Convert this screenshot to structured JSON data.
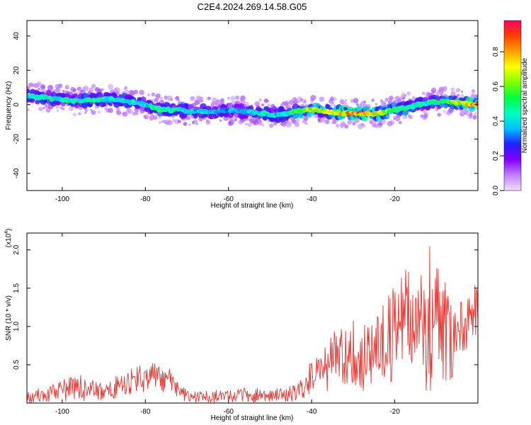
{
  "title": "C2E4.2024.269.14.58.G05",
  "colorbar": {
    "label": "Normalized spectral amplitude",
    "ticks": [
      "0.0",
      "0.2",
      "0.4",
      "0.6",
      "0.8"
    ],
    "tick_values": [
      0.0,
      0.2,
      0.4,
      0.6,
      0.8
    ],
    "range": [
      0.0,
      0.98
    ],
    "colors": [
      "#f0e0ff",
      "#c080ff",
      "#8000ff",
      "#2020ff",
      "#00c0ff",
      "#00ffc0",
      "#00ff40",
      "#80ff00",
      "#ffff00",
      "#ffa000",
      "#ff4000",
      "#ff0060"
    ]
  },
  "chart_data": [
    {
      "type": "heatmap",
      "xlabel": "Height of straight line (km)",
      "ylabel": "Frequency (Hz)",
      "xlim": [
        -108.5,
        0
      ],
      "ylim": [
        -50,
        49
      ],
      "xticks": [
        "-100",
        "-80",
        "-60",
        "-40",
        "-20"
      ],
      "xtick_values": [
        -100,
        -80,
        -60,
        -40,
        -20
      ],
      "yticks": [
        "40",
        "20",
        "0",
        "-20",
        "-40"
      ],
      "ytick_values": [
        40,
        20,
        0,
        -20,
        -40
      ],
      "ridge": {
        "x": [
          -108,
          -104,
          -100,
          -96,
          -92,
          -88,
          -84,
          -80,
          -76,
          -72,
          -68,
          -64,
          -60,
          -56,
          -52,
          -48,
          -44,
          -40,
          -36,
          -32,
          -28,
          -24,
          -20,
          -16,
          -12,
          -8,
          -4,
          0
        ],
        "freq_hz": [
          5,
          4,
          3,
          2,
          3,
          3,
          2,
          0,
          -3,
          -3,
          -4,
          -4,
          -3,
          -4,
          -5,
          -6,
          -4,
          -3,
          -4,
          -5,
          -5,
          -5,
          -3,
          -1,
          1,
          2,
          1,
          0
        ],
        "amplitude": [
          0.5,
          0.55,
          0.5,
          0.5,
          0.55,
          0.5,
          0.5,
          0.45,
          0.6,
          0.5,
          0.45,
          0.45,
          0.4,
          0.4,
          0.5,
          0.45,
          0.6,
          0.75,
          0.8,
          0.9,
          0.9,
          0.85,
          0.6,
          0.55,
          0.5,
          0.6,
          0.8,
          0.95
        ]
      }
    },
    {
      "type": "line",
      "xlabel": "Height of straight line (km)",
      "ylabel": "SNR (10 * v/v)",
      "exponent_label": "(x10",
      "exponent_power": "4",
      "exponent_close": ")",
      "xlim": [
        -108.5,
        0
      ],
      "ylim": [
        0,
        2.22
      ],
      "xticks": [
        "-100",
        "-80",
        "-60",
        "-40",
        "-20"
      ],
      "xtick_values": [
        -100,
        -80,
        -60,
        -40,
        -20
      ],
      "yticks": [
        "2.0",
        "1.5",
        "1.0",
        "0.5"
      ],
      "ytick_values": [
        2.0,
        1.5,
        1.0,
        0.5
      ],
      "color": "#e8332e",
      "series": [
        {
          "x": [
            -108,
            -106,
            -104,
            -102,
            -100,
            -98,
            -96,
            -94,
            -92,
            -90,
            -88,
            -86,
            -84,
            -82,
            -80,
            -78,
            -76,
            -74,
            -72,
            -70,
            -68,
            -66,
            -64,
            -62,
            -60,
            -58,
            -56,
            -54,
            -52,
            -50,
            -48,
            -46,
            -44,
            -42,
            -40,
            -38,
            -36,
            -34,
            -32,
            -30,
            -28,
            -26,
            -24,
            -22,
            -20,
            -18,
            -16,
            -14,
            -12,
            -10,
            -8,
            -6,
            -4,
            -2,
            0
          ],
          "values": [
            0.05,
            0.1,
            0.08,
            0.15,
            0.12,
            0.25,
            0.2,
            0.15,
            0.18,
            0.12,
            0.2,
            0.25,
            0.3,
            0.35,
            0.4,
            0.45,
            0.3,
            0.35,
            0.15,
            0.1,
            0.08,
            0.07,
            0.09,
            0.08,
            0.07,
            0.1,
            0.12,
            0.1,
            0.13,
            0.08,
            0.1,
            0.12,
            0.15,
            0.2,
            0.35,
            0.4,
            0.5,
            0.6,
            0.55,
            0.65,
            0.5,
            0.7,
            0.9,
            1.0,
            0.85,
            1.1,
            1.4,
            1.2,
            1.3,
            1.6,
            1.2,
            1.1,
            0.9,
            1.2,
            1.3
          ],
          "upper": [
            0.15,
            0.2,
            0.2,
            0.3,
            0.3,
            0.35,
            0.38,
            0.3,
            0.3,
            0.25,
            0.35,
            0.4,
            0.45,
            0.48,
            0.52,
            0.52,
            0.45,
            0.45,
            0.25,
            0.18,
            0.15,
            0.15,
            0.18,
            0.16,
            0.16,
            0.18,
            0.2,
            0.18,
            0.22,
            0.18,
            0.2,
            0.2,
            0.25,
            0.35,
            0.6,
            0.7,
            0.9,
            1.0,
            0.95,
            1.15,
            1.0,
            1.3,
            1.35,
            1.5,
            1.55,
            1.75,
            1.9,
            1.7,
            2.2,
            1.85,
            1.65,
            1.4,
            1.35,
            1.5,
            1.6
          ],
          "lower": [
            0.0,
            0.0,
            0.0,
            0.02,
            0.0,
            0.05,
            0.05,
            0.02,
            0.05,
            0.02,
            0.05,
            0.08,
            0.1,
            0.12,
            0.15,
            0.2,
            0.12,
            0.15,
            0.05,
            0.02,
            0.0,
            0.0,
            0.0,
            0.0,
            0.0,
            0.02,
            0.02,
            0.0,
            0.02,
            0.0,
            0.0,
            0.02,
            0.02,
            0.05,
            0.1,
            0.1,
            0.15,
            0.2,
            0.15,
            0.2,
            0.15,
            0.2,
            0.3,
            0.35,
            0.2,
            0.3,
            0.5,
            0.4,
            0.05,
            0.3,
            0.2,
            0.25,
            0.5,
            0.7,
            0.9
          ]
        }
      ]
    }
  ]
}
